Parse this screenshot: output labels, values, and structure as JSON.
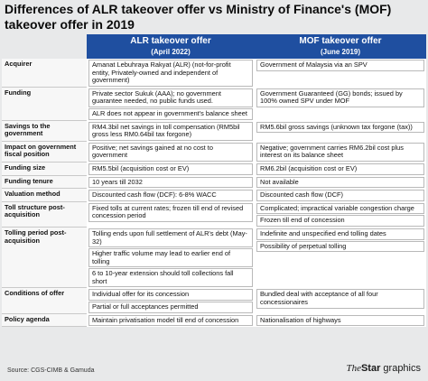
{
  "title": "Differences of ALR takeover offer vs Ministry of Finance's (MOF) takeover offer in 2019",
  "headers": {
    "alr": "ALR takeover offer",
    "alr_date": "(April 2022)",
    "mof": "MOF takeover offer",
    "mof_date": "(June 2019)"
  },
  "rows": [
    {
      "label": "Acquirer",
      "alr": [
        "Amanat Lebuhraya Rakyat (ALR) (not-for-profit entity, Privately-owned and independent of government)"
      ],
      "mof": [
        "Government of Malaysia via an SPV"
      ]
    },
    {
      "label": "Funding",
      "alr": [
        "Private sector Sukuk (AAA); no government guarantee needed, no public funds used.",
        "ALR does not appear in government's balance sheet"
      ],
      "mof": [
        "Government Guaranteed (GG) bonds; issued by 100% owned SPV under MOF"
      ]
    },
    {
      "label": "Savings to the government",
      "alr": [
        "RM4.3bil net savings in toll compensation (RM5bil gross less RM0.64bil tax forgone)"
      ],
      "mof": [
        "RM5.6bil gross savings (unknown tax forgone (tax))"
      ]
    },
    {
      "label": "Impact on government fiscal position",
      "alr": [
        "Positive; net savings gained at no cost to government"
      ],
      "mof": [
        "Negative; government carries RM6.2bil cost plus interest on its balance sheet"
      ]
    },
    {
      "label": "Funding size",
      "alr": [
        "RM5.5bil (acquisition cost or EV)"
      ],
      "mof": [
        "RM6.2bil (acquisition cost or EV)"
      ]
    },
    {
      "label": "Funding tenure",
      "alr": [
        "10 years till 2032"
      ],
      "mof": [
        "Not available"
      ]
    },
    {
      "label": "Valuation method",
      "alr": [
        "Discounted cash flow (DCF): 6-8% WACC"
      ],
      "mof": [
        "Discounted cash flow (DCF)"
      ]
    },
    {
      "label": "Toll structure post-acquisition",
      "alr": [
        "Fixed tolls at current rates; frozen till end of revised concession period"
      ],
      "mof": [
        "Complicated; impractical variable congestion charge",
        "Frozen till end of concession"
      ]
    },
    {
      "label": "Tolling period post-acquisition",
      "alr": [
        "Tolling ends upon full settlement of ALR's debt (May-32)",
        "Higher traffic volume may lead to earlier end of tolling",
        "6 to 10-year extension should toll collections fall short"
      ],
      "mof": [
        "Indefinite and unspecified end tolling dates",
        "Possibility of perpetual tolling"
      ]
    },
    {
      "label": "Conditions of offer",
      "alr": [
        "Individual offer for its concession",
        "Partial or full acceptances permitted"
      ],
      "mof": [
        "Bundled deal with acceptance of all four concessionaires"
      ]
    },
    {
      "label": "Policy agenda",
      "alr": [
        "Maintain privatisation model till end of concession"
      ],
      "mof": [
        "Nationalisation of highways"
      ]
    }
  ],
  "source": "Source: CGS-CIMB & Gamuda",
  "logo": "TheStar graphics"
}
